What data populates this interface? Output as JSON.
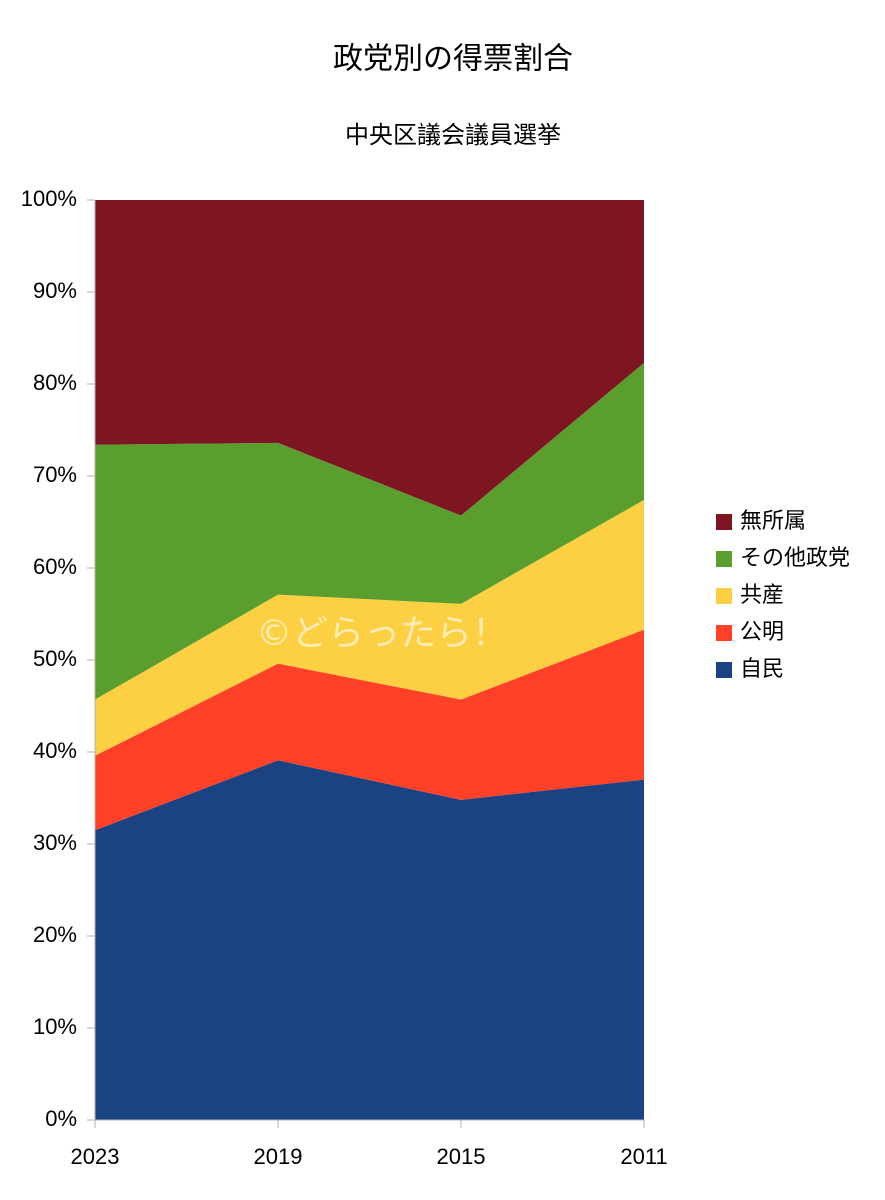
{
  "chart_data": {
    "type": "stacked_area_percent",
    "title": "政党別の得票割合",
    "subtitle": "中央区議会議員選挙",
    "annotations": [
      "©どらったら！"
    ],
    "categories": [
      "2023",
      "2019",
      "2015",
      "2011"
    ],
    "series": [
      {
        "name": "自民",
        "color": "#1b4283",
        "values": [
          31.5,
          39.1,
          34.8,
          37.0
        ]
      },
      {
        "name": "公明",
        "color": "#ff4127",
        "values": [
          8.1,
          10.5,
          10.9,
          16.3
        ]
      },
      {
        "name": "共産",
        "color": "#fdd043",
        "values": [
          6.1,
          7.5,
          10.4,
          14.1
        ]
      },
      {
        "name": "その他政党",
        "color": "#5a9e2e",
        "values": [
          27.7,
          16.5,
          9.6,
          14.9
        ]
      },
      {
        "name": "無所属",
        "color": "#7d1522",
        "values": [
          26.6,
          26.4,
          34.3,
          17.7
        ]
      }
    ],
    "ylim": [
      0,
      100
    ],
    "yticks": [
      {
        "value": 0,
        "label": "0%"
      },
      {
        "value": 10,
        "label": "10%"
      },
      {
        "value": 20,
        "label": "20%"
      },
      {
        "value": 30,
        "label": "30%"
      },
      {
        "value": 40,
        "label": "40%"
      },
      {
        "value": 50,
        "label": "50%"
      },
      {
        "value": 60,
        "label": "60%"
      },
      {
        "value": 70,
        "label": "70%"
      },
      {
        "value": 80,
        "label": "80%"
      },
      {
        "value": 90,
        "label": "90%"
      },
      {
        "value": 100,
        "label": "100%"
      }
    ],
    "grid": false,
    "legend": "right"
  }
}
